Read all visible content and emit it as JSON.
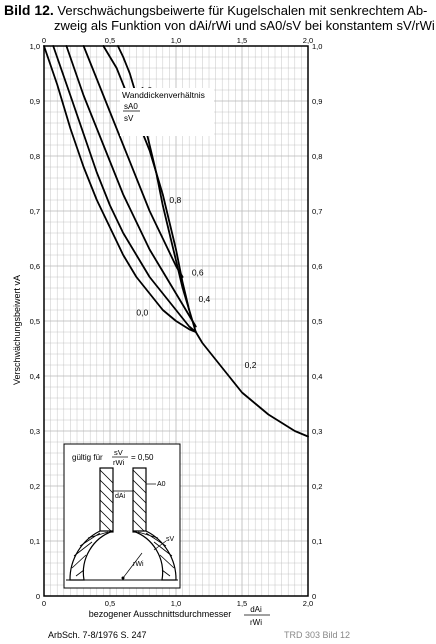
{
  "title": {
    "figure_label": "Bild 12.",
    "line1": "Verschwächungsbeiwerte für Kugelschalen mit senkrechtem Ab-",
    "line2": "zweig als Funktion von dAi/rWi und sA0/sV bei konstantem sV/rWi"
  },
  "footer": {
    "source": "ArbSch. 7-8/1976 S. 247",
    "watermark": "TRD 303 Bild 12"
  },
  "inset": {
    "valid_label": "gültig für",
    "frac_num": "sV",
    "frac_den": "rWi",
    "frac_value": "= 0,50",
    "label_dAi": "dAi",
    "label_sA0": "A0",
    "label_sV": "sV",
    "label_rWi": "rWi"
  },
  "chart_data": {
    "type": "line",
    "xlabel": "bezogener Ausschnittsdurchmesser",
    "xlabel_frac_num": "dAi",
    "xlabel_frac_den": "rWi",
    "ylabel": "Verschwächungsbeiwert vA",
    "xlim": [
      0,
      2.0
    ],
    "ylim": [
      0,
      1.0
    ],
    "x_ticks": [
      "0",
      "0,5",
      "1,0",
      "1,5",
      "2,0"
    ],
    "y_ticks": [
      "0",
      "0,1",
      "0,2",
      "0,3",
      "0,4",
      "0,5",
      "0,6",
      "0,7",
      "0,8",
      "0,9",
      "1,0"
    ],
    "grid": true,
    "legend_title": "Wanddickenverhältnis",
    "legend_frac_num": "sA0",
    "legend_frac_den": "sV",
    "series": [
      {
        "name": "0,0",
        "x": [
          0.0,
          0.1,
          0.2,
          0.3,
          0.4,
          0.5,
          0.6,
          0.7,
          0.8,
          0.9,
          1.0,
          1.1,
          1.15
        ],
        "y": [
          1.0,
          0.93,
          0.85,
          0.78,
          0.72,
          0.67,
          0.62,
          0.58,
          0.55,
          0.52,
          0.5,
          0.485,
          0.48
        ]
      },
      {
        "name": "0,2",
        "x": [
          0.07,
          0.2,
          0.3,
          0.4,
          0.5,
          0.6,
          0.7,
          0.8,
          0.9,
          1.0,
          1.1,
          1.15
        ],
        "y": [
          1.0,
          0.91,
          0.84,
          0.77,
          0.71,
          0.66,
          0.62,
          0.58,
          0.55,
          0.52,
          0.49,
          0.48
        ]
      },
      {
        "name": "0,4",
        "x": [
          0.17,
          0.3,
          0.4,
          0.5,
          0.6,
          0.7,
          0.8,
          0.9,
          1.0,
          1.1,
          1.15
        ],
        "y": [
          1.0,
          0.91,
          0.85,
          0.79,
          0.73,
          0.68,
          0.63,
          0.59,
          0.55,
          0.51,
          0.49
        ]
      },
      {
        "name": "0,6",
        "x": [
          0.3,
          0.4,
          0.5,
          0.6,
          0.7,
          0.8,
          0.9,
          1.0,
          1.05
        ],
        "y": [
          1.0,
          0.94,
          0.88,
          0.82,
          0.76,
          0.7,
          0.65,
          0.6,
          0.58
        ]
      },
      {
        "name": "0,8",
        "x": [
          0.45,
          0.55,
          0.65,
          0.75,
          0.8,
          0.85,
          0.9,
          0.95,
          1.0,
          1.05,
          1.1
        ],
        "y": [
          1.0,
          0.96,
          0.9,
          0.84,
          0.81,
          0.77,
          0.73,
          0.68,
          0.63,
          0.57,
          0.52
        ]
      },
      {
        "name": "1,0",
        "x": [
          0.56,
          0.6,
          0.65,
          0.7,
          0.75,
          0.8,
          0.85,
          0.9,
          0.95,
          1.0,
          1.05,
          1.1,
          1.15
        ],
        "y": [
          1.0,
          0.98,
          0.95,
          0.91,
          0.87,
          0.82,
          0.77,
          0.71,
          0.66,
          0.61,
          0.56,
          0.52,
          0.48
        ]
      },
      {
        "name": "envelope",
        "x": [
          1.15,
          1.2,
          1.3,
          1.4,
          1.5,
          1.6,
          1.7,
          1.8,
          1.9,
          2.0
        ],
        "y": [
          0.48,
          0.46,
          0.43,
          0.4,
          0.37,
          0.35,
          0.33,
          0.315,
          0.3,
          0.29
        ]
      }
    ],
    "curve_labels": [
      {
        "text": "1,0",
        "x": 0.73,
        "y": 0.915
      },
      {
        "text": "0,8",
        "x": 0.95,
        "y": 0.715
      },
      {
        "text": "0,6",
        "x": 1.12,
        "y": 0.583
      },
      {
        "text": "0,4",
        "x": 1.17,
        "y": 0.535
      },
      {
        "text": "0,0",
        "x": 0.7,
        "y": 0.51
      },
      {
        "text": "0,2",
        "x": 1.52,
        "y": 0.415
      }
    ],
    "colors": {
      "curve": "#000000",
      "grid": "#b8b8b8",
      "paper": "#ffffff"
    }
  }
}
